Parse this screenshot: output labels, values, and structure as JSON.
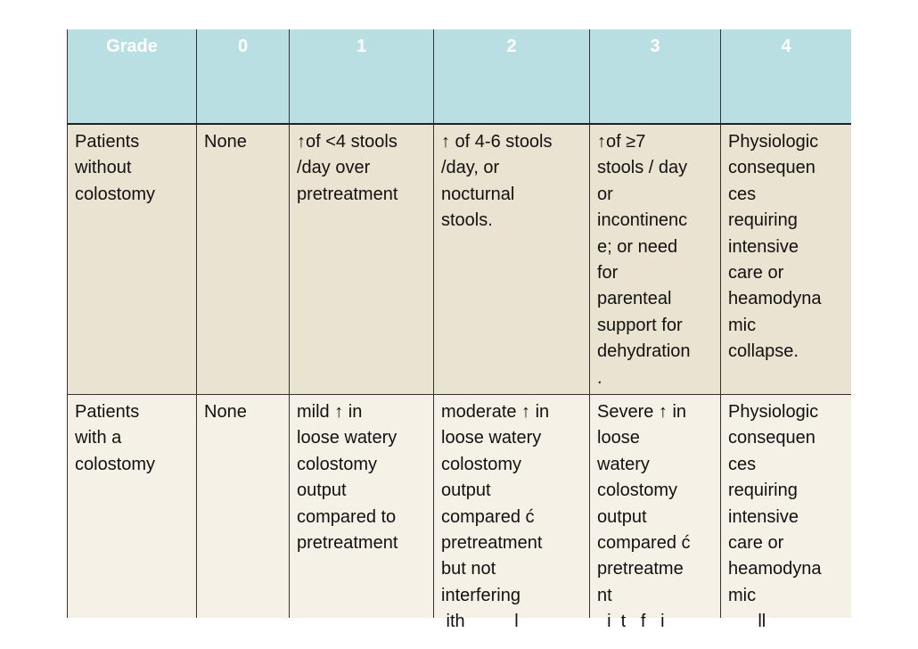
{
  "table": {
    "header": [
      "Grade",
      "0",
      "1",
      "2",
      "3",
      "4"
    ],
    "rows": [
      [
        [
          "Patients",
          "without",
          "colostomy"
        ],
        [
          "None"
        ],
        [
          "↑of <4 stools",
          "/day over",
          "pretreatment"
        ],
        [
          "↑ of 4-6 stools",
          "/day, or",
          "nocturnal",
          "stools."
        ],
        [
          "↑of ≥7",
          "stools / day",
          "or",
          "incontinenc",
          "e; or need",
          "for",
          "parenteal",
          "support for",
          "dehydration",
          "."
        ],
        [
          "Physiologic",
          "consequen",
          "ces",
          "requiring",
          "intensive",
          "care or",
          "heamodyna",
          "mic",
          "collapse."
        ]
      ],
      [
        [
          "Patients",
          "with a",
          "colostomy"
        ],
        [
          "None"
        ],
        [
          "mild ↑ in",
          "loose watery",
          "colostomy",
          "output",
          "compared to",
          "pretreatment"
        ],
        [
          "moderate ↑ in",
          "loose watery",
          "colostomy",
          "output",
          "compared ć",
          "pretreatment",
          "but not",
          "interfering",
          " ith          l"
        ],
        [
          "Severe ↑ in",
          "loose",
          "watery",
          "colostomy",
          "output",
          "compared ć",
          "pretreatme",
          "nt",
          "  i  t   f   i"
        ],
        [
          "Physiologic",
          "consequen",
          "ces",
          "requiring",
          "intensive",
          "care or",
          "heamodyna",
          "mic",
          "      ll"
        ]
      ]
    ]
  }
}
